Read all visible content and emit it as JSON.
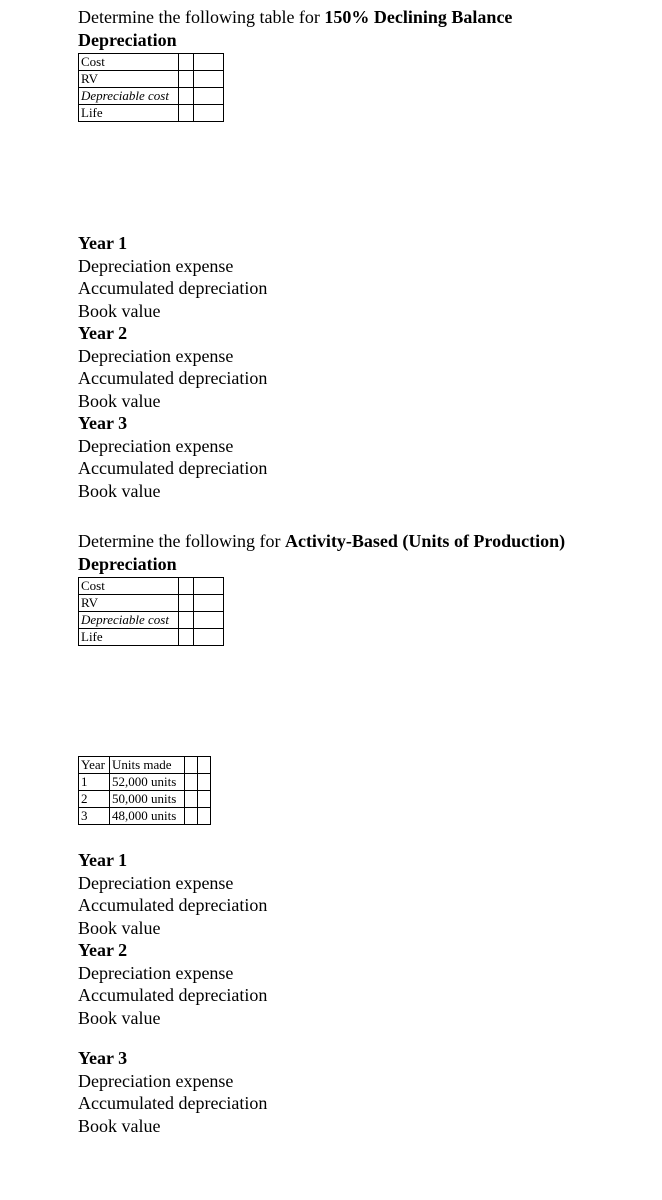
{
  "section1": {
    "prompt_pre": "Determine the following table for ",
    "prompt_bold": "150% Declining Balance Depreciation",
    "table_rows": [
      "Cost",
      "RV",
      "Depreciable cost",
      "Life"
    ]
  },
  "years_block": {
    "years": [
      {
        "hd": "Year 1",
        "lines": [
          "Depreciation expense",
          "Accumulated depreciation",
          "Book value"
        ]
      },
      {
        "hd": "Year 2",
        "lines": [
          "Depreciation expense",
          "Accumulated depreciation",
          "Book value"
        ]
      },
      {
        "hd": "Year 3",
        "lines": [
          "Depreciation expense",
          "Accumulated depreciation",
          "Book value"
        ]
      }
    ]
  },
  "section2": {
    "prompt_pre": "Determine the following for ",
    "prompt_bold": "Activity-Based (Units of Production) Depreciation",
    "table_rows": [
      "Cost",
      "RV",
      "Depreciable cost",
      "Life"
    ]
  },
  "units_table": {
    "head": [
      "Year",
      "Units made"
    ],
    "rows": [
      {
        "y": "1",
        "u": "52,000 units"
      },
      {
        "y": "2",
        "u": "50,000 units"
      },
      {
        "y": "3",
        "u": "48,000 units"
      }
    ]
  },
  "years_block2": {
    "years": [
      {
        "hd": "Year 1",
        "lines": [
          "Depreciation expense",
          "Accumulated depreciation",
          "Book value"
        ]
      },
      {
        "hd": "Year 2",
        "lines": [
          "Depreciation expense",
          "Accumulated depreciation",
          "Book value"
        ]
      },
      {
        "hd": "Year 3",
        "lines": [
          "Depreciation expense",
          "Accumulated depreciation",
          "Book value"
        ]
      }
    ]
  }
}
